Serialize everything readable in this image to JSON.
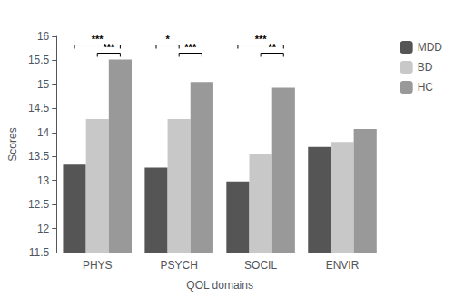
{
  "chart_data": {
    "type": "bar",
    "xlabel": "QOL domains",
    "ylabel": "Scores",
    "categories": [
      "PHYS",
      "PSYCH",
      "SOCIL",
      "ENVIR"
    ],
    "series": [
      {
        "name": "MDD",
        "color": "#555555",
        "values": [
          13.33,
          13.27,
          12.98,
          13.7
        ]
      },
      {
        "name": "BD",
        "color": "#c8c8c8",
        "values": [
          14.28,
          14.28,
          13.55,
          13.8
        ]
      },
      {
        "name": "HC",
        "color": "#999999",
        "values": [
          15.52,
          15.05,
          14.93,
          14.07
        ]
      }
    ],
    "ylim": [
      11.5,
      16
    ],
    "yticks": [
      11.5,
      12.0,
      12.5,
      13.0,
      13.5,
      14.0,
      14.5,
      15.0,
      15.5,
      16.0
    ],
    "legend": "right",
    "grid": false,
    "annotations": [
      {
        "category": "PHYS",
        "between": [
          "MDD",
          "HC"
        ],
        "y": 15.82,
        "label": "***"
      },
      {
        "category": "PHYS",
        "between": [
          "BD",
          "HC"
        ],
        "y": 15.65,
        "label": "***"
      },
      {
        "category": "PSYCH",
        "between": [
          "MDD",
          "BD"
        ],
        "y": 15.82,
        "label": "*"
      },
      {
        "category": "PSYCH",
        "between": [
          "BD",
          "HC"
        ],
        "y": 15.65,
        "label": "***"
      },
      {
        "category": "SOCIL",
        "between": [
          "MDD",
          "HC"
        ],
        "y": 15.82,
        "label": "***"
      },
      {
        "category": "SOCIL",
        "between": [
          "BD",
          "HC"
        ],
        "y": 15.65,
        "label": "**"
      }
    ]
  }
}
